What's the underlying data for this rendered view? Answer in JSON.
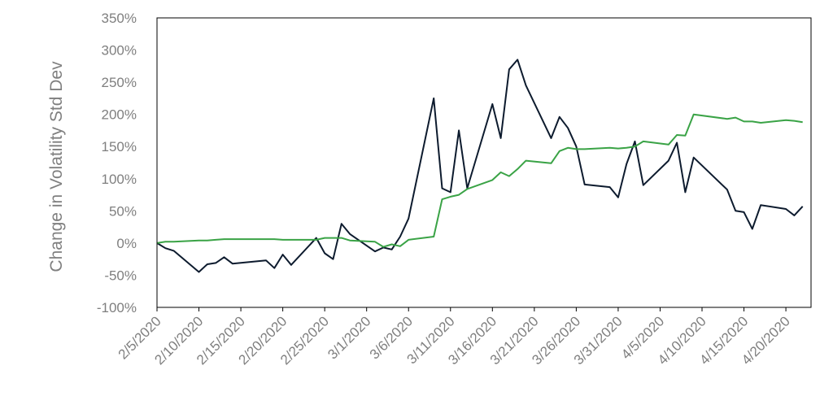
{
  "chart_data": {
    "type": "line",
    "title": "",
    "ylabel": "Change in Volatility Std Dev",
    "xlabel": "",
    "ylim": [
      -100,
      350
    ],
    "yticks": [
      -100,
      -50,
      0,
      50,
      100,
      150,
      200,
      250,
      300,
      350
    ],
    "ytick_labels": [
      "-100%",
      "-50%",
      "0%",
      "50%",
      "100%",
      "150%",
      "200%",
      "250%",
      "300%",
      "350%"
    ],
    "xlim": [
      "2020-02-05",
      "2020-04-23"
    ],
    "xtick_dates": [
      "2020-02-05",
      "2020-02-10",
      "2020-02-15",
      "2020-02-20",
      "2020-02-25",
      "2020-03-01",
      "2020-03-06",
      "2020-03-11",
      "2020-03-16",
      "2020-03-21",
      "2020-03-26",
      "2020-03-31",
      "2020-04-05",
      "2020-04-10",
      "2020-04-15",
      "2020-04-20"
    ],
    "xtick_labels": [
      "2/5/2020",
      "2/10/2020",
      "2/15/2020",
      "2/20/2020",
      "2/25/2020",
      "3/1/2020",
      "3/6/2020",
      "3/11/2020",
      "3/16/2020",
      "3/21/2020",
      "3/26/2020",
      "3/31/2020",
      "4/5/2020",
      "4/10/2020",
      "4/15/2020",
      "4/20/2020"
    ],
    "grid": false,
    "legend": "none",
    "series": [
      {
        "color": "#0d1b2e",
        "points": [
          [
            "2020-02-05",
            0
          ],
          [
            "2020-02-06",
            -8
          ],
          [
            "2020-02-07",
            -12
          ],
          [
            "2020-02-10",
            -45
          ],
          [
            "2020-02-11",
            -33
          ],
          [
            "2020-02-12",
            -31
          ],
          [
            "2020-02-13",
            -22
          ],
          [
            "2020-02-14",
            -32
          ],
          [
            "2020-02-18",
            -27
          ],
          [
            "2020-02-19",
            -39
          ],
          [
            "2020-02-20",
            -18
          ],
          [
            "2020-02-21",
            -34
          ],
          [
            "2020-02-24",
            8
          ],
          [
            "2020-02-25",
            -16
          ],
          [
            "2020-02-26",
            -25
          ],
          [
            "2020-02-27",
            30
          ],
          [
            "2020-02-28",
            14
          ],
          [
            "2020-03-02",
            -13
          ],
          [
            "2020-03-03",
            -7
          ],
          [
            "2020-03-04",
            -10
          ],
          [
            "2020-03-05",
            10
          ],
          [
            "2020-03-06",
            38
          ],
          [
            "2020-03-09",
            225
          ],
          [
            "2020-03-10",
            85
          ],
          [
            "2020-03-11",
            79
          ],
          [
            "2020-03-12",
            175
          ],
          [
            "2020-03-13",
            85
          ],
          [
            "2020-03-16",
            216
          ],
          [
            "2020-03-17",
            163
          ],
          [
            "2020-03-18",
            270
          ],
          [
            "2020-03-19",
            285
          ],
          [
            "2020-03-20",
            245
          ],
          [
            "2020-03-23",
            163
          ],
          [
            "2020-03-24",
            196
          ],
          [
            "2020-03-25",
            179
          ],
          [
            "2020-03-26",
            150
          ],
          [
            "2020-03-27",
            91
          ],
          [
            "2020-03-30",
            87
          ],
          [
            "2020-03-31",
            71
          ],
          [
            "2020-04-01",
            123
          ],
          [
            "2020-04-02",
            158
          ],
          [
            "2020-04-03",
            90
          ],
          [
            "2020-04-06",
            128
          ],
          [
            "2020-04-07",
            156
          ],
          [
            "2020-04-08",
            79
          ],
          [
            "2020-04-09",
            133
          ],
          [
            "2020-04-13",
            83
          ],
          [
            "2020-04-14",
            50
          ],
          [
            "2020-04-15",
            48
          ],
          [
            "2020-04-16",
            22
          ],
          [
            "2020-04-17",
            59
          ],
          [
            "2020-04-20",
            53
          ],
          [
            "2020-04-21",
            43
          ],
          [
            "2020-04-22",
            57
          ]
        ]
      },
      {
        "color": "#3aa346",
        "points": [
          [
            "2020-02-05",
            0
          ],
          [
            "2020-02-06",
            2
          ],
          [
            "2020-02-07",
            2
          ],
          [
            "2020-02-10",
            4
          ],
          [
            "2020-02-11",
            4
          ],
          [
            "2020-02-12",
            5
          ],
          [
            "2020-02-13",
            6
          ],
          [
            "2020-02-14",
            6
          ],
          [
            "2020-02-18",
            6
          ],
          [
            "2020-02-19",
            6
          ],
          [
            "2020-02-20",
            5
          ],
          [
            "2020-02-21",
            5
          ],
          [
            "2020-02-24",
            5
          ],
          [
            "2020-02-25",
            8
          ],
          [
            "2020-02-26",
            8
          ],
          [
            "2020-02-27",
            8
          ],
          [
            "2020-02-28",
            4
          ],
          [
            "2020-03-02",
            2
          ],
          [
            "2020-03-03",
            -6
          ],
          [
            "2020-03-04",
            -2
          ],
          [
            "2020-03-05",
            -5
          ],
          [
            "2020-03-06",
            5
          ],
          [
            "2020-03-09",
            10
          ],
          [
            "2020-03-10",
            68
          ],
          [
            "2020-03-11",
            72
          ],
          [
            "2020-03-12",
            75
          ],
          [
            "2020-03-13",
            84
          ],
          [
            "2020-03-16",
            98
          ],
          [
            "2020-03-17",
            110
          ],
          [
            "2020-03-18",
            104
          ],
          [
            "2020-03-19",
            115
          ],
          [
            "2020-03-20",
            128
          ],
          [
            "2020-03-23",
            124
          ],
          [
            "2020-03-24",
            143
          ],
          [
            "2020-03-25",
            148
          ],
          [
            "2020-03-26",
            146
          ],
          [
            "2020-03-27",
            146
          ],
          [
            "2020-03-30",
            148
          ],
          [
            "2020-03-31",
            147
          ],
          [
            "2020-04-01",
            148
          ],
          [
            "2020-04-02",
            150
          ],
          [
            "2020-04-03",
            158
          ],
          [
            "2020-04-06",
            153
          ],
          [
            "2020-04-07",
            168
          ],
          [
            "2020-04-08",
            167
          ],
          [
            "2020-04-09",
            200
          ],
          [
            "2020-04-13",
            193
          ],
          [
            "2020-04-14",
            195
          ],
          [
            "2020-04-15",
            189
          ],
          [
            "2020-04-16",
            189
          ],
          [
            "2020-04-17",
            187
          ],
          [
            "2020-04-20",
            191
          ],
          [
            "2020-04-21",
            190
          ],
          [
            "2020-04-22",
            188
          ]
        ]
      }
    ]
  }
}
